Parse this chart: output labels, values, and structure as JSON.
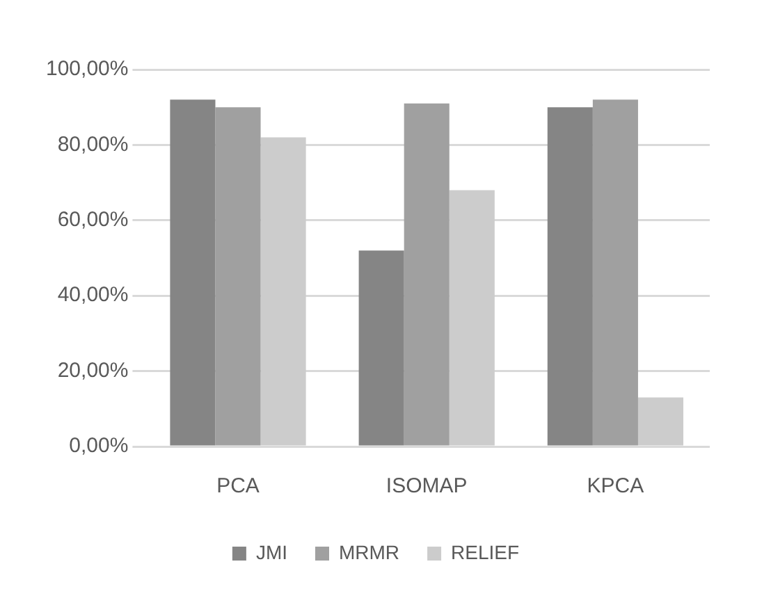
{
  "chart_data": {
    "type": "bar",
    "categories": [
      "PCA",
      "ISOMAP",
      "KPCA"
    ],
    "series": [
      {
        "name": "JMI",
        "color": "#858585",
        "values": [
          92,
          52,
          90
        ]
      },
      {
        "name": "MRMR",
        "color": "#a0a0a0",
        "values": [
          90,
          91,
          92
        ]
      },
      {
        "name": "RELIEF",
        "color": "#cccccc",
        "values": [
          82,
          68,
          13
        ]
      }
    ],
    "ylim": [
      0,
      100
    ],
    "yticks": [
      {
        "value": 0,
        "label": "0,00%"
      },
      {
        "value": 20,
        "label": "20,00%"
      },
      {
        "value": 40,
        "label": "40,00%"
      },
      {
        "value": 60,
        "label": "60,00%"
      },
      {
        "value": 80,
        "label": "80,00%"
      },
      {
        "value": 100,
        "label": "100,00%"
      }
    ],
    "grid": "y",
    "legend": "bottom"
  }
}
